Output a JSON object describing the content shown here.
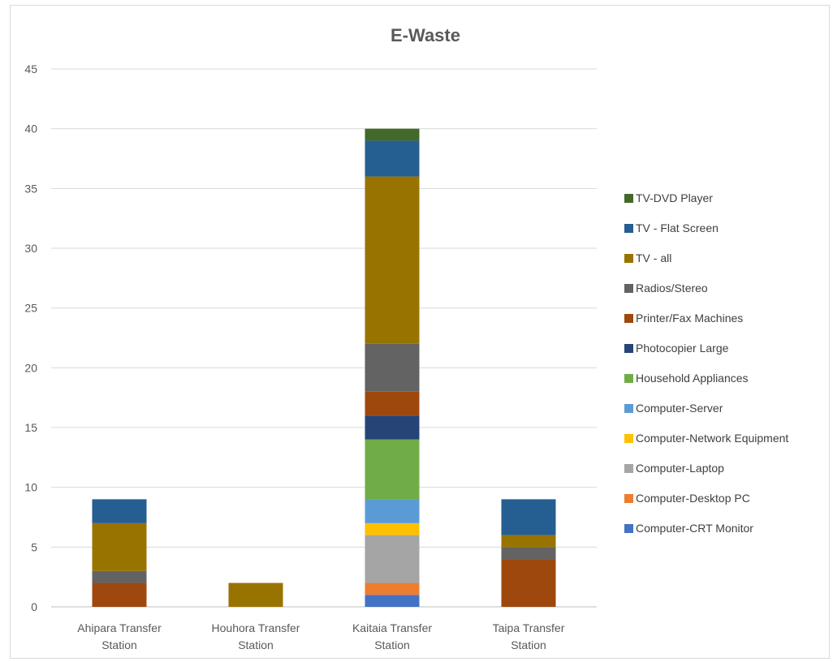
{
  "chart_data": {
    "type": "bar",
    "stacked": true,
    "title": "E-Waste",
    "xlabel": "",
    "ylabel": "",
    "ylim": [
      0,
      45
    ],
    "yticks": [
      0,
      5,
      10,
      15,
      20,
      25,
      30,
      35,
      40,
      45
    ],
    "grid": true,
    "legend_position": "right",
    "categories": [
      [
        "Ahipara Transfer",
        "Station"
      ],
      [
        "Houhora Transfer",
        "Station"
      ],
      [
        "Kaitaia Transfer",
        "Station"
      ],
      [
        "Taipa Transfer",
        "Station"
      ]
    ],
    "series": [
      {
        "name": "Computer-CRT Monitor",
        "color": "#4472c4",
        "values": [
          0,
          0,
          1,
          0
        ]
      },
      {
        "name": "Computer-Desktop PC",
        "color": "#ed7d31",
        "values": [
          0,
          0,
          1,
          0
        ]
      },
      {
        "name": "Computer-Laptop",
        "color": "#a5a5a5",
        "values": [
          0,
          0,
          4,
          0
        ]
      },
      {
        "name": "Computer-Network Equipment",
        "color": "#ffc000",
        "values": [
          0,
          0,
          1,
          0
        ]
      },
      {
        "name": "Computer-Server",
        "color": "#5b9bd5",
        "values": [
          0,
          0,
          2,
          0
        ]
      },
      {
        "name": "Household Appliances",
        "color": "#70ad47",
        "values": [
          0,
          0,
          5,
          0
        ]
      },
      {
        "name": "Photocopier Large",
        "color": "#264478",
        "values": [
          0,
          0,
          2,
          0
        ]
      },
      {
        "name": "Printer/Fax Machines",
        "color": "#9e480e",
        "values": [
          2,
          0,
          2,
          4
        ]
      },
      {
        "name": "Radios/Stereo",
        "color": "#636363",
        "values": [
          1,
          0,
          4,
          1
        ]
      },
      {
        "name": "TV - all",
        "color": "#997300",
        "values": [
          4,
          2,
          14,
          1
        ]
      },
      {
        "name": "TV - Flat Screen",
        "color": "#255e91",
        "values": [
          2,
          0,
          3,
          3
        ]
      },
      {
        "name": "TV-DVD Player",
        "color": "#43682b",
        "values": [
          0,
          0,
          1,
          0
        ]
      }
    ]
  }
}
